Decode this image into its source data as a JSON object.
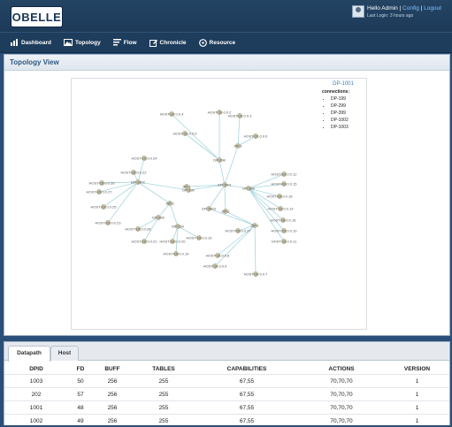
{
  "header": {
    "logo_text": "OBELLE",
    "greeting": "Hello Admin",
    "separator": "|",
    "config_link": "Config",
    "logout_link": "Logout",
    "last_login": "Last Login: 3 hours ago"
  },
  "nav": {
    "items": [
      {
        "label": "Dashboard",
        "icon": "bar-chart-icon"
      },
      {
        "label": "Topology",
        "icon": "image-icon"
      },
      {
        "label": "Flow",
        "icon": "list-icon"
      },
      {
        "label": "Chronicle",
        "icon": "edit-icon"
      },
      {
        "label": "Resource",
        "icon": "resource-icon"
      }
    ]
  },
  "topology": {
    "title": "Topology View",
    "info": {
      "title": "DP-1001",
      "connections_label": "connections:",
      "connections": [
        "DP-199",
        "DP-299",
        "DP-399",
        "DP-1002",
        "DP-1003"
      ]
    },
    "nodes": {
      "h1": "HOST-10.0.0.2",
      "h2": "HOST-10.0.0.3",
      "h3": "HOST-10.0.0.4",
      "h4": "HOST-10.0.0.5",
      "h5": "HOST-10.0.0.6",
      "h6": "HOST-10.0.0.24",
      "h7": "HOST-10.0.0.22",
      "h8": "HOST-10.0.0.26",
      "h9": "HOST-10.0.0.27",
      "h10": "HOST-10.0.0.25",
      "h11": "HOST-10.0.0.23",
      "h12": "HOST-10.0.0.28",
      "h13": "HOST-10.0.0.21",
      "h14": "HOST-10.0.0.20",
      "h15": "HOST-10.0.0.14",
      "h16": "HOST-10.0.0.19",
      "h17": "HOST-10.0.0.17",
      "h18": "HOST-10.0.0.8",
      "h19": "HOST-10.0.0.9",
      "h20": "HOST-10.0.0.7",
      "h21": "HOST-10.0.0.12",
      "h22": "HOST-10.0.0.15",
      "h23": "HOST-10.0.0.18",
      "h24": "HOST-10.0.0.13",
      "h25": "HOST-10.0.0.16",
      "h26": "HOST-10.0.0.10",
      "h27": "HOST-10.0.0.11",
      "d1": "DP-298",
      "d2": "DP-2",
      "d3": "DP-1002",
      "d4": "DP-1001",
      "d5": "DP-299",
      "d6": "DP-3",
      "d7": "DP-399",
      "d8": "DP-1003",
      "d9": "DP-199",
      "d10": "DP-1",
      "d11": "DP-299",
      "d12": "DP-1",
      "d13": "DP-2"
    }
  },
  "datapath": {
    "tabs": [
      "Datapath",
      "Host"
    ],
    "columns": [
      "DPID",
      "FD",
      "BUFF",
      "TABLES",
      "CAPABILITIES",
      "ACTIONS",
      "VERSION"
    ],
    "rows": [
      [
        "1003",
        "50",
        "256",
        "255",
        "67,55",
        "70,70,70",
        "1"
      ],
      [
        "202",
        "57",
        "256",
        "255",
        "67,55",
        "70,70,70",
        "1"
      ],
      [
        "1001",
        "48",
        "256",
        "255",
        "67,55",
        "70,70,70",
        "1"
      ],
      [
        "1002",
        "49",
        "256",
        "255",
        "67,55",
        "70,70,70",
        "1"
      ]
    ]
  }
}
